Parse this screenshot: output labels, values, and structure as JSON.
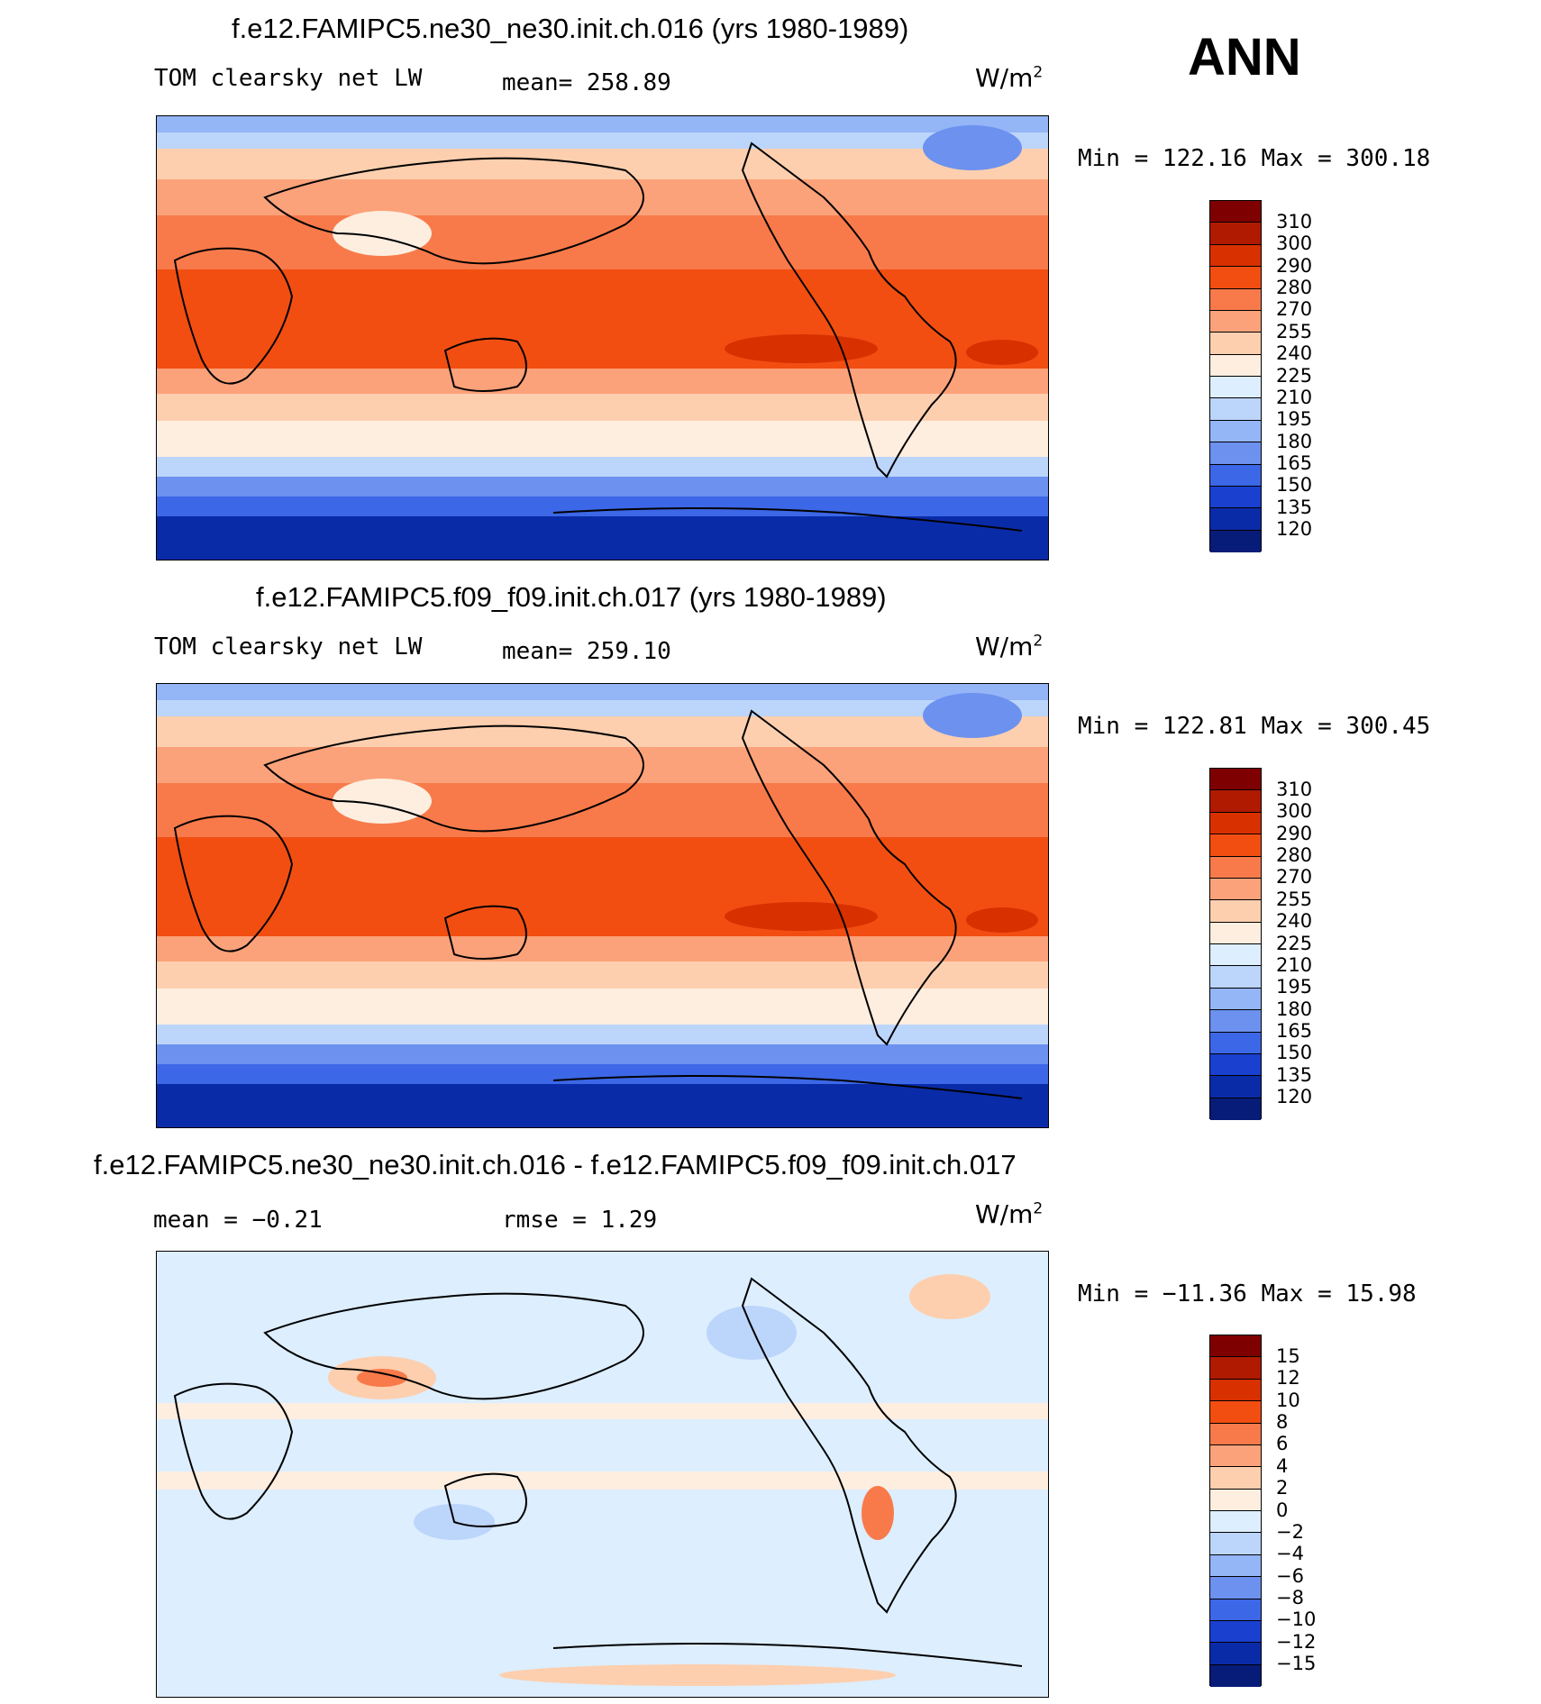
{
  "season": "ANN",
  "panels": [
    {
      "title": "f.e12.FAMIPC5.ne30_ne30.init.ch.016 (yrs 1980-1989)",
      "variable": "TOM clearsky net LW",
      "mean_text": "mean= 258.89",
      "units": "W/m",
      "units_sup": "2",
      "minmax_text": "Min  =  122.16  Max  =  300.18"
    },
    {
      "title": "f.e12.FAMIPC5.f09_f09.init.ch.017 (yrs 1980-1989)",
      "variable": "TOM clearsky net LW",
      "mean_text": "mean= 259.10",
      "units": "W/m",
      "units_sup": "2",
      "minmax_text": "Min  =  122.81  Max  =  300.45"
    },
    {
      "title": "f.e12.FAMIPC5.ne30_ne30.init.ch.016 - f.e12.FAMIPC5.f09_f09.init.ch.017",
      "mean_text": "mean  =   −0.21",
      "rmse_text": "rmse  =    1.29",
      "units": "W/m",
      "units_sup": "2",
      "minmax_text": "Min  =  −11.36  Max  =   15.98"
    }
  ],
  "colorbar_abs": {
    "levels": [
      "310",
      "300",
      "290",
      "280",
      "270",
      "255",
      "240",
      "225",
      "210",
      "195",
      "180",
      "165",
      "150",
      "135",
      "120"
    ],
    "colors": [
      "#7f0000",
      "#b01a00",
      "#d93000",
      "#f24e12",
      "#f87a4a",
      "#fca27a",
      "#fdcfae",
      "#fdeee0",
      "#ddeeff",
      "#bcd5fb",
      "#94b5f6",
      "#6c91ef",
      "#3c67e6",
      "#1a40cf",
      "#0a2ba8",
      "#071c78"
    ]
  },
  "colorbar_diff": {
    "levels": [
      "15",
      "12",
      "10",
      "8",
      "6",
      "4",
      "2",
      "0",
      "−2",
      "−4",
      "−6",
      "−8",
      "−10",
      "−12",
      "−15"
    ],
    "colors": [
      "#7f0000",
      "#b01a00",
      "#d93000",
      "#f24e12",
      "#f87a4a",
      "#fca27a",
      "#fdcfae",
      "#fdeee0",
      "#ddeeff",
      "#bcd5fb",
      "#94b5f6",
      "#6c91ef",
      "#3c67e6",
      "#1a40cf",
      "#0a2ba8",
      "#071c78"
    ]
  }
}
